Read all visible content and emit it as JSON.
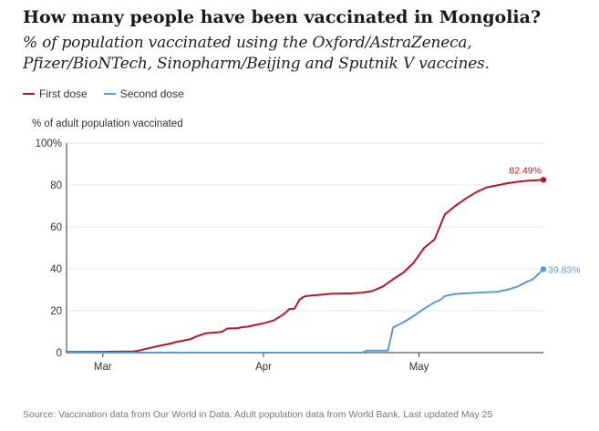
{
  "title": "How many people have been vaccinated in Mongolia?",
  "subtitle_line1": "% of population vaccinated using the Oxford/AstraZeneca,",
  "subtitle_line2": "Pfizer/BioNTech, Sinopharm/Beijing and Sputnik V vaccines.",
  "source": "Source: Vaccination data from Our World in Data. Adult population data from World Bank. Last updated May 25",
  "colors": {
    "first_dose": "#b2182b",
    "second_dose": "#5b9bd5",
    "axis": "#333333",
    "grid": "#e6e6e6"
  },
  "chart_data": {
    "type": "line",
    "ylabel": "% of adult population vaccinated",
    "ylim": [
      0,
      100
    ],
    "yticks": [
      0,
      20,
      40,
      60,
      80,
      100
    ],
    "ytick_labels": [
      "0",
      "20",
      "40",
      "60",
      "80",
      "100%"
    ],
    "xlim": [
      "2021-02-22",
      "2021-05-25"
    ],
    "xticks": [
      "2021-03-01",
      "2021-04-01",
      "2021-05-01"
    ],
    "xtick_labels": [
      "Mar",
      "Apr",
      "May"
    ],
    "grid": "horizontal",
    "legend_position": "top-left",
    "series": [
      {
        "name": "First dose",
        "color": "#b2182b",
        "end_label": "82.49%",
        "points": [
          [
            "2021-02-22",
            0.3
          ],
          [
            "2021-03-01",
            0.4
          ],
          [
            "2021-03-04",
            0.5
          ],
          [
            "2021-03-07",
            0.6
          ],
          [
            "2021-03-08",
            1.0
          ],
          [
            "2021-03-10",
            2.2
          ],
          [
            "2021-03-12",
            3.3
          ],
          [
            "2021-03-14",
            4.3
          ],
          [
            "2021-03-15",
            5.0
          ],
          [
            "2021-03-16",
            5.5
          ],
          [
            "2021-03-18",
            6.5
          ],
          [
            "2021-03-19",
            7.7
          ],
          [
            "2021-03-20",
            8.5
          ],
          [
            "2021-03-21",
            9.3
          ],
          [
            "2021-03-23",
            9.6
          ],
          [
            "2021-03-24",
            10.0
          ],
          [
            "2021-03-25",
            11.5
          ],
          [
            "2021-03-26",
            11.6
          ],
          [
            "2021-03-27",
            11.7
          ],
          [
            "2021-03-28",
            12.2
          ],
          [
            "2021-03-29",
            12.4
          ],
          [
            "2021-03-30",
            13.0
          ],
          [
            "2021-04-01",
            14.0
          ],
          [
            "2021-04-03",
            15.4
          ],
          [
            "2021-04-05",
            18.5
          ],
          [
            "2021-04-06",
            20.8
          ],
          [
            "2021-04-07",
            21.0
          ],
          [
            "2021-04-08",
            25.5
          ],
          [
            "2021-04-09",
            26.9
          ],
          [
            "2021-04-10",
            27.2
          ],
          [
            "2021-04-12",
            27.6
          ],
          [
            "2021-04-14",
            28.1
          ],
          [
            "2021-04-18",
            28.3
          ],
          [
            "2021-04-20",
            28.6
          ],
          [
            "2021-04-22",
            29.4
          ],
          [
            "2021-04-24",
            31.5
          ],
          [
            "2021-04-26",
            35.0
          ],
          [
            "2021-04-28",
            38.2
          ],
          [
            "2021-04-30",
            43.0
          ],
          [
            "2021-05-02",
            50.0
          ],
          [
            "2021-05-04",
            54.0
          ],
          [
            "2021-05-06",
            66.0
          ],
          [
            "2021-05-08",
            70.0
          ],
          [
            "2021-05-10",
            73.5
          ],
          [
            "2021-05-12",
            76.5
          ],
          [
            "2021-05-14",
            78.8
          ],
          [
            "2021-05-16",
            79.8
          ],
          [
            "2021-05-18",
            80.8
          ],
          [
            "2021-05-20",
            81.5
          ],
          [
            "2021-05-22",
            82.0
          ],
          [
            "2021-05-25",
            82.49
          ]
        ]
      },
      {
        "name": "Second dose",
        "color": "#5b9bd5",
        "end_label": "39.83%",
        "points": [
          [
            "2021-02-22",
            0.0
          ],
          [
            "2021-04-20",
            0.0
          ],
          [
            "2021-04-21",
            1.0
          ],
          [
            "2021-04-25",
            1.0
          ],
          [
            "2021-04-26",
            12.0
          ],
          [
            "2021-04-28",
            14.5
          ],
          [
            "2021-04-30",
            17.5
          ],
          [
            "2021-05-02",
            21.0
          ],
          [
            "2021-05-04",
            24.0
          ],
          [
            "2021-05-05",
            25.0
          ],
          [
            "2021-05-06",
            27.0
          ],
          [
            "2021-05-08",
            28.0
          ],
          [
            "2021-05-10",
            28.3
          ],
          [
            "2021-05-14",
            28.8
          ],
          [
            "2021-05-16",
            29.0
          ],
          [
            "2021-05-18",
            30.0
          ],
          [
            "2021-05-20",
            31.5
          ],
          [
            "2021-05-22",
            34.0
          ],
          [
            "2021-05-23",
            35.0
          ],
          [
            "2021-05-25",
            39.83
          ]
        ]
      }
    ]
  }
}
